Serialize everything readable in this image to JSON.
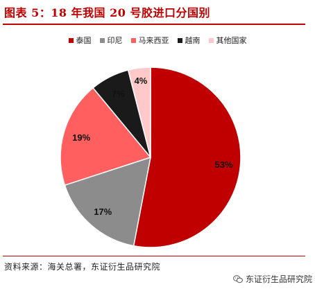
{
  "figure_title": "图表 5：18 年我国 20 号胶进口分国别",
  "source": "资料来源：海关总署，东证衍生品研究院",
  "watermark": "东证衍生品研究院",
  "watermark_icon": "wechat-icon",
  "chart_data": {
    "type": "pie",
    "title": "",
    "legend_position": "top",
    "categories": [
      "泰国",
      "印尼",
      "马来西亚",
      "越南",
      "其他国家"
    ],
    "values": [
      53,
      17,
      19,
      7,
      4
    ],
    "labels": [
      "53%",
      "17%",
      "19%",
      "7%",
      "4%"
    ],
    "colors": [
      "#c00000",
      "#8c8c8c",
      "#ff5f5f",
      "#1a1a1a",
      "#ffc9c9"
    ],
    "start_angle_deg": 0,
    "direction": "clockwise"
  }
}
